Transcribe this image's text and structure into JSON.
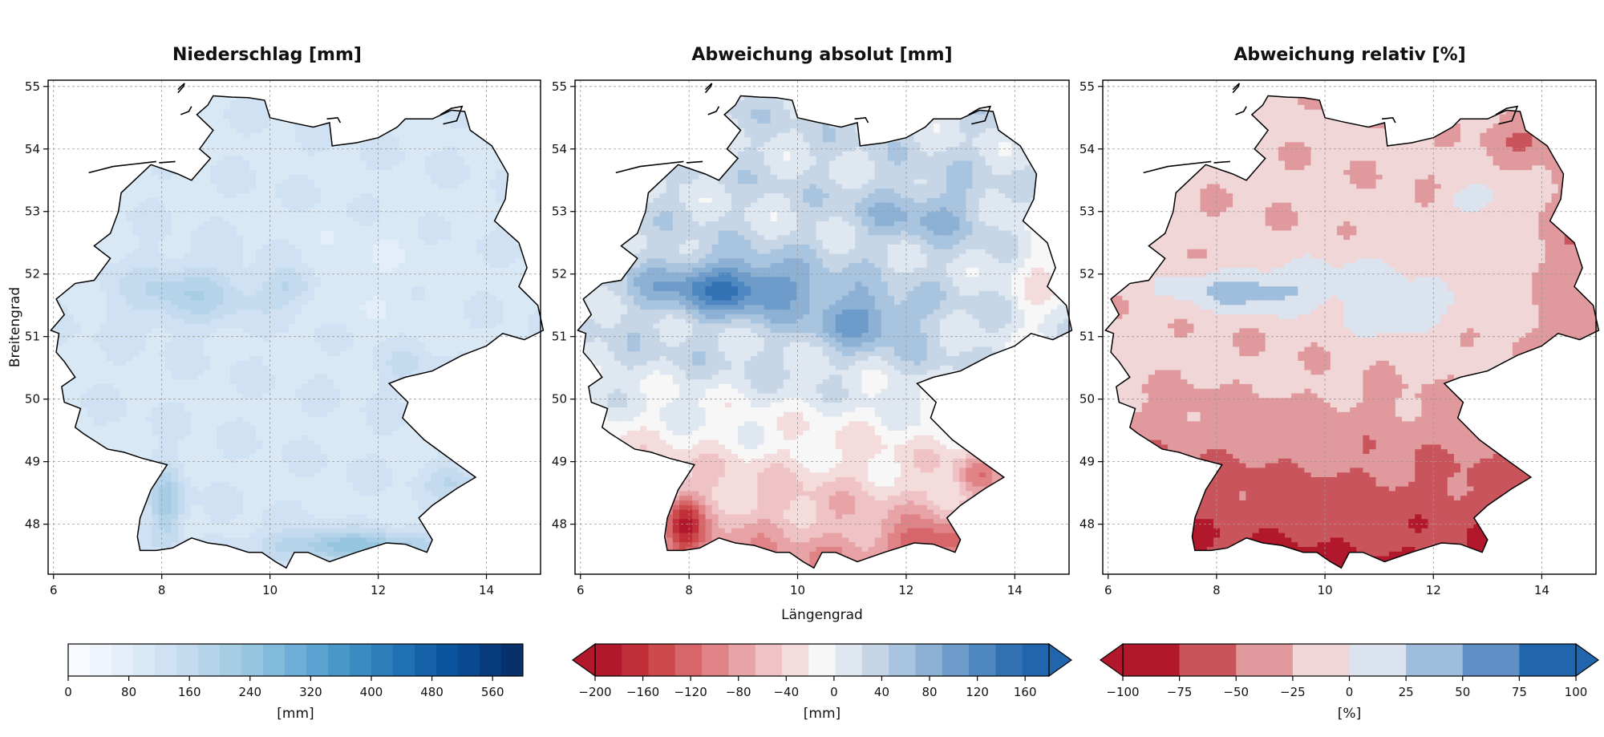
{
  "panels": [
    {
      "id": "precip",
      "title": "Niederschlag [mm]",
      "palette": "blues"
    },
    {
      "id": "absdev",
      "title": "Abweichung absolut [mm]",
      "palette": "diverging"
    },
    {
      "id": "reldev",
      "title": "Abweichung relativ [%]",
      "palette": "diverging-coarse"
    }
  ],
  "map": {
    "lon_range": [
      5.9,
      15.0
    ],
    "lat_range": [
      47.2,
      55.1
    ],
    "lon_ticks": [
      "6",
      "8",
      "10",
      "12",
      "14"
    ],
    "lat_ticks": [
      "48",
      "49",
      "50",
      "51",
      "52",
      "53",
      "54",
      "55"
    ],
    "xlabel": "Längengrad",
    "ylabel": "Breitengrad",
    "grid": true
  },
  "colorbars": [
    {
      "unit": "[mm]",
      "extend": "none",
      "ticks": [
        "0",
        "80",
        "160",
        "240",
        "320",
        "400",
        "480",
        "560"
      ],
      "range": [
        0,
        600
      ],
      "colors": [
        "#f7fbff",
        "#eef5fc",
        "#e3eef9",
        "#d9e8f5",
        "#cfe1f2",
        "#c4daee",
        "#b6d4e9",
        "#a6cde4",
        "#95c5df",
        "#82badb",
        "#6eaed8",
        "#5ba3d0",
        "#4a98c9",
        "#3a8bc2",
        "#2c7dba",
        "#2070b4",
        "#1562a9",
        "#0b559f",
        "#084990",
        "#083b7e",
        "#08306b"
      ]
    },
    {
      "unit": "[mm]",
      "extend": "both",
      "ticks": [
        "−200",
        "−160",
        "−120",
        "−80",
        "−40",
        "0",
        "40",
        "80",
        "120",
        "160"
      ],
      "range": [
        -200,
        180
      ],
      "colors": [
        "#b2182b",
        "#c1303a",
        "#cd4a4c",
        "#d6666a",
        "#df8387",
        "#e8a3a6",
        "#efc3c5",
        "#f4dcdd",
        "#f7f7f7",
        "#dfe7f0",
        "#c6d6e7",
        "#a9c4de",
        "#8cb1d4",
        "#6d9ccb",
        "#4f87c0",
        "#3272b4",
        "#2166ac"
      ],
      "low_color": "#b2182b",
      "high_color": "#2166ac"
    },
    {
      "unit": "[%]",
      "extend": "both",
      "ticks": [
        "−100",
        "−75",
        "−50",
        "−25",
        "0",
        "25",
        "50",
        "75",
        "100"
      ],
      "range": [
        -100,
        100
      ],
      "colors": [
        "#b2182b",
        "#c9545c",
        "#e0999c",
        "#f0d6d7",
        "#dbe3ee",
        "#9fbddd",
        "#5f8fc5",
        "#2166ac"
      ],
      "low_color": "#b2182b",
      "high_color": "#2166ac"
    }
  ]
}
